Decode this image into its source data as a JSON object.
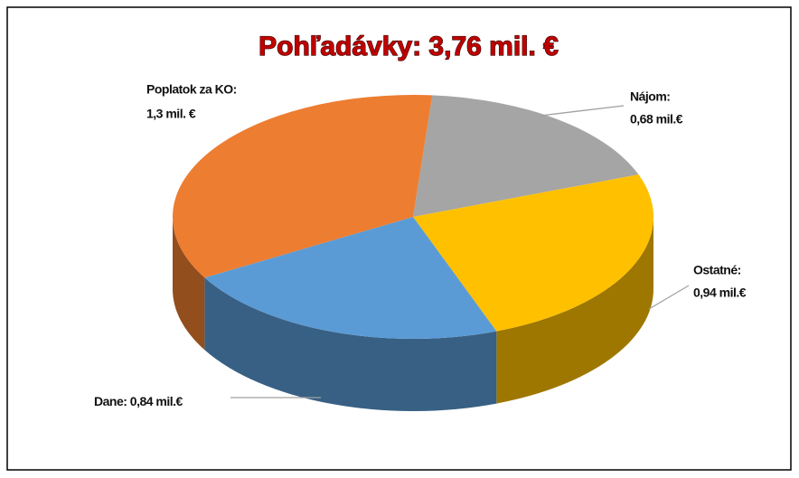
{
  "chart_data": {
    "type": "pie",
    "title": "Pohľadávky: 3,76 mil. €",
    "categories": [
      "Nájom:",
      "Ostatné:",
      "Dane:",
      "Poplatok za KO:"
    ],
    "values": [
      0.68,
      0.94,
      0.84,
      1.3
    ],
    "value_labels": [
      "0,68 mil.€",
      "0,94 mil.€",
      "0,84 mil.€",
      "1,3 mil. €"
    ],
    "colors": [
      "#a5a5a5",
      "#ffc000",
      "#5b9bd5",
      "#ed7d31"
    ]
  }
}
